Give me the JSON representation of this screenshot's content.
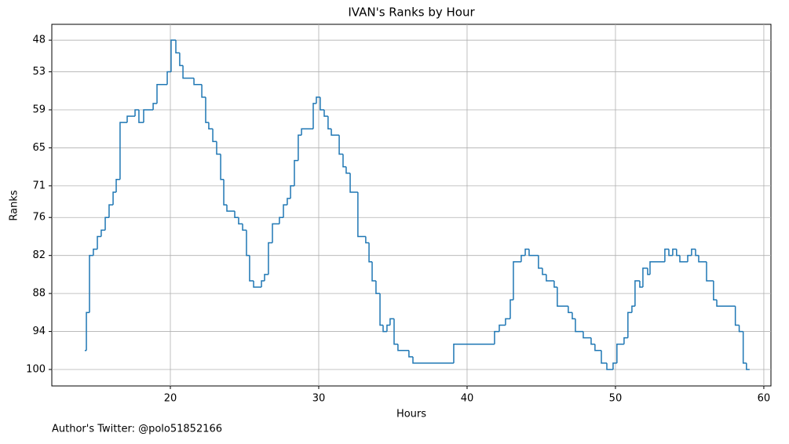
{
  "chart_data": {
    "type": "step",
    "title": "IVAN's Ranks by Hour",
    "x_label": "Hours",
    "y_label": "Ranks",
    "footnote": "Author's Twitter: @polo51852166",
    "x": [
      14.23,
      14.34,
      14.55,
      14.81,
      15.08,
      15.34,
      15.61,
      15.87,
      16.14,
      16.35,
      16.61,
      17.09,
      17.62,
      17.88,
      18.2,
      18.84,
      19.1,
      19.79,
      20.05,
      20.37,
      20.63,
      20.85,
      21.59,
      22.12,
      22.38,
      22.59,
      22.86,
      23.12,
      23.39,
      23.6,
      23.81,
      24.34,
      24.6,
      24.87,
      25.13,
      25.34,
      25.61,
      26.14,
      26.35,
      26.61,
      26.88,
      27.35,
      27.62,
      27.88,
      28.1,
      28.36,
      28.62,
      28.84,
      29.63,
      29.84,
      30.1,
      30.37,
      30.63,
      30.85,
      31.38,
      31.64,
      31.85,
      32.12,
      32.64,
      33.17,
      33.39,
      33.6,
      33.86,
      34.13,
      34.34,
      34.6,
      34.81,
      35.08,
      35.34,
      36.08,
      36.35,
      39.1,
      41.85,
      42.17,
      42.59,
      42.91,
      43.12,
      43.65,
      43.92,
      44.18,
      44.81,
      45.08,
      45.34,
      45.87,
      46.08,
      46.82,
      47.09,
      47.3,
      47.83,
      48.36,
      48.62,
      49.05,
      49.42,
      49.84,
      50.1,
      50.58,
      50.84,
      51.11,
      51.32,
      51.64,
      51.85,
      52.17,
      52.33,
      53.33,
      53.6,
      53.86,
      54.12,
      54.34,
      54.87,
      55.13,
      55.4,
      55.61,
      56.14,
      56.61,
      56.83,
      58.08,
      58.34,
      58.61,
      58.83,
      59.04
    ],
    "series": [
      {
        "name": "IVAN",
        "color": "#1f77b4",
        "values": [
          97,
          91,
          82,
          81,
          79,
          78,
          76,
          74,
          72,
          70,
          61,
          60,
          59,
          61,
          59,
          58,
          55,
          53,
          48,
          50,
          52,
          54,
          55,
          57,
          61,
          62,
          64,
          66,
          70,
          74,
          75,
          76,
          77,
          78,
          82,
          86,
          87,
          86,
          85,
          80,
          77,
          76,
          74,
          73,
          71,
          67,
          63,
          62,
          58,
          57,
          59,
          60,
          62,
          63,
          66,
          68,
          69,
          72,
          79,
          80,
          83,
          86,
          88,
          93,
          94,
          93,
          92,
          96,
          97,
          98,
          99,
          96,
          94,
          93,
          92,
          89,
          83,
          82,
          81,
          82,
          84,
          85,
          86,
          87,
          90,
          91,
          92,
          94,
          95,
          96,
          97,
          99,
          100,
          99,
          96,
          95,
          91,
          90,
          86,
          87,
          84,
          85,
          83,
          81,
          82,
          81,
          82,
          83,
          82,
          81,
          82,
          83,
          86,
          89,
          90,
          93,
          94,
          99,
          100,
          100
        ]
      }
    ],
    "xlim": [
      12.01,
      60.48
    ],
    "xticks": [
      20,
      30,
      40,
      50,
      60
    ],
    "ylim": [
      102.6,
      45.5
    ],
    "yticks": [
      48,
      53,
      59,
      65,
      71,
      76,
      82,
      88,
      94,
      100
    ],
    "grid": true
  }
}
